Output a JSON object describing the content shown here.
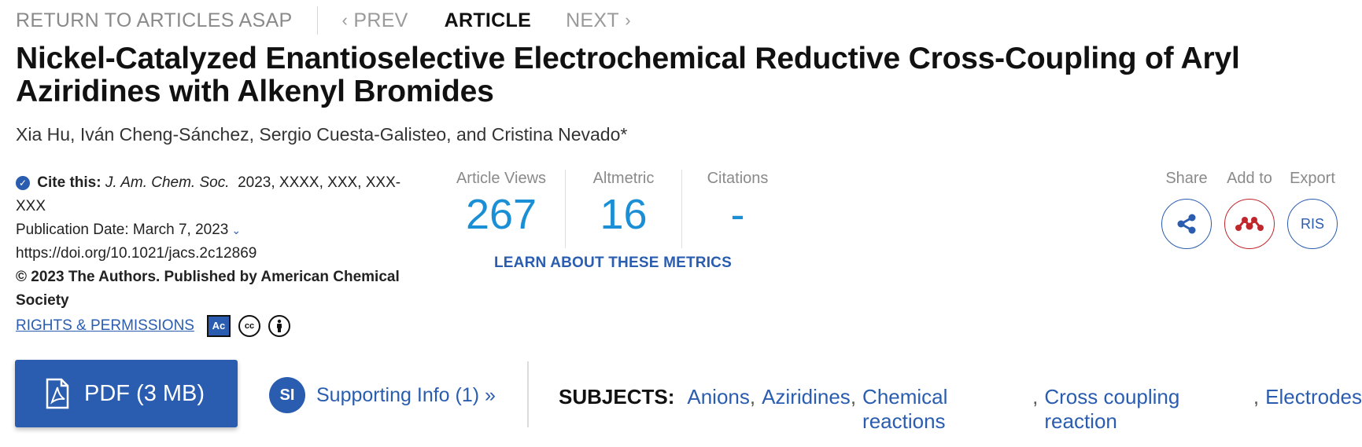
{
  "nav": {
    "return_label": "RETURN TO ARTICLES ASAP",
    "prev_label": "PREV",
    "article_label": "ARTICLE",
    "next_label": "NEXT"
  },
  "title": "Nickel-Catalyzed Enantioselective Electrochemical Reductive Cross-Coupling of Aryl Aziridines with Alkenyl Bromides",
  "authors": "Xia Hu, Iván Cheng-Sánchez, Sergio Cuesta-Galisteo, and Cristina Nevado*",
  "citation": {
    "cite_label": "Cite this:",
    "journal": "J. Am. Chem. Soc.",
    "details": "2023, XXXX, XXX, XXX-XXX",
    "publication_date": "Publication Date: March 7, 2023",
    "doi": "https://doi.org/10.1021/jacs.2c12869",
    "copyright": "© 2023 The Authors. Published by American Chemical Society",
    "rights_label": "RIGHTS & PERMISSIONS",
    "ac_badge": "Ac",
    "cc_label": "cc"
  },
  "metrics": {
    "views_label": "Article Views",
    "views_value": "267",
    "altmetric_label": "Altmetric",
    "altmetric_value": "16",
    "citations_label": "Citations",
    "citations_value": "-",
    "learn_label": "LEARN ABOUT THESE METRICS"
  },
  "actions": {
    "share_label": "Share",
    "add_label": "Add to",
    "export_label": "Export",
    "export_button": "RIS"
  },
  "pdf_label": "PDF (3 MB)",
  "supporting": {
    "badge": "SI",
    "label": "Supporting Info (1) »"
  },
  "subjects": {
    "heading": "SUBJECTS:",
    "items": [
      "Anions",
      "Aziridines",
      "Chemical reactions",
      "Cross coupling reaction",
      "Electrodes"
    ]
  },
  "colors": {
    "brand_blue": "#2a5db0",
    "metric_blue": "#1a8fd6",
    "mendeley_red": "#c0272d"
  }
}
